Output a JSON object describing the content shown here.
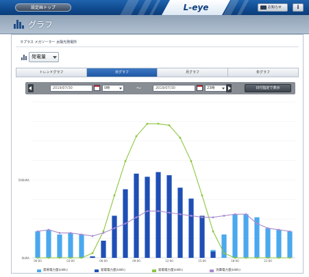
{
  "topbar": {
    "back_label": "設定画トップ",
    "brand": "L-eye",
    "messages_label": "お知らせ",
    "info_label": "i"
  },
  "page": {
    "title": "グラフ"
  },
  "panel": {
    "plant_name": "ラプラス メガソーラー 太陽光発電所",
    "kind_select": "発電量"
  },
  "tabs": [
    {
      "label": "トレンドグラフ",
      "active": false
    },
    {
      "label": "日グラフ",
      "active": true
    },
    {
      "label": "月グラフ",
      "active": false
    },
    {
      "label": "年グラフ",
      "active": false
    }
  ],
  "datebar": {
    "start_date": "2019/07/30",
    "start_hour": "0時",
    "tilde": "〜",
    "end_date": "2019/07/30",
    "end_hour": "23時",
    "show_button": "日付指定で表示"
  },
  "colors": {
    "light_blue": "#4aa8ee",
    "dark_blue": "#1f4fb5",
    "green": "#8cc63f",
    "purple": "#a98ad0",
    "active_tab": "#2a63ad"
  },
  "chart_data": {
    "type": "bar",
    "ylim": [
      0,
      1
    ],
    "y_ticks": [
      {
        "value": 0,
        "label": "0kWh"
      },
      {
        "value": 0.5,
        "label": "500kWh"
      }
    ],
    "x_ticks": [
      "00:00",
      "03:00",
      "06:00",
      "09:00",
      "12:00",
      "15:00",
      "18:00",
      "21:00"
    ],
    "hours": [
      0,
      1,
      2,
      3,
      4,
      5,
      6,
      7,
      8,
      9,
      10,
      11,
      12,
      13,
      14,
      15,
      16,
      17,
      18,
      19,
      20,
      21,
      22,
      23
    ],
    "series": [
      {
        "name": "需要電力量(kWh)",
        "kind": "bar",
        "color": "#4aa8ee",
        "values": [
          0.17,
          0.18,
          0.15,
          0.16,
          0.15,
          0,
          0,
          0,
          0,
          0,
          0,
          0,
          0,
          0,
          0,
          0,
          0.05,
          0.15,
          0.28,
          0.28,
          0.26,
          0.19,
          0.18,
          0.17
        ]
      },
      {
        "name": "発電電力量(kWh)",
        "kind": "bar",
        "color": "#1f4fb5",
        "values": [
          0,
          0,
          0,
          0,
          0,
          0.01,
          0.11,
          0.27,
          0.44,
          0.54,
          0.52,
          0.55,
          0.53,
          0.45,
          0.38,
          0.27,
          0.04,
          0,
          0,
          0,
          0,
          0,
          0,
          0
        ]
      },
      {
        "name": "発電電力量(kWh)",
        "kind": "line",
        "color": "#8cc63f",
        "values": [
          0,
          0,
          0,
          0,
          0,
          0.03,
          0.17,
          0.4,
          0.62,
          0.78,
          0.86,
          0.86,
          0.85,
          0.77,
          0.62,
          0.4,
          0.17,
          0.03,
          0,
          0,
          0,
          0,
          0,
          0
        ]
      },
      {
        "name": "消費電力量(kWh)",
        "kind": "line",
        "color": "#a98ad0",
        "values": [
          0.17,
          0.18,
          0.16,
          0.16,
          0.15,
          0.14,
          0.16,
          0.19,
          0.22,
          0.26,
          0.3,
          0.3,
          0.29,
          0.28,
          0.27,
          0.26,
          0.26,
          0.27,
          0.28,
          0.28,
          0.22,
          0.19,
          0.18,
          0.17
        ]
      }
    ]
  }
}
